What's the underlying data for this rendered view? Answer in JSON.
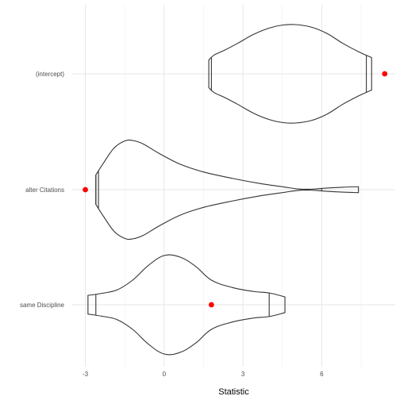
{
  "chart_data": {
    "type": "violin",
    "xlabel": "Statistic",
    "ylabel": "",
    "xlim": [
      -3.5,
      8.8
    ],
    "x_ticks": [
      -3,
      0,
      3,
      6
    ],
    "x_tick_labels": [
      "-3",
      "0",
      "3",
      "6"
    ],
    "categories": [
      "(intercept)",
      "alter Citations",
      "same Discipline"
    ],
    "grid": true,
    "outline_color": "#333333",
    "point_color": "#ff0000",
    "series": [
      {
        "category": "(intercept)",
        "observed": 8.4,
        "quantiles": [
          1.8,
          7.7
        ],
        "density": [
          [
            1.7,
            0.0
          ],
          [
            1.7,
            0.28
          ],
          [
            1.9,
            0.38
          ],
          [
            2.3,
            0.48
          ],
          [
            2.8,
            0.62
          ],
          [
            3.4,
            0.8
          ],
          [
            4.0,
            0.93
          ],
          [
            4.5,
            0.99
          ],
          [
            5.0,
            1.0
          ],
          [
            5.6,
            0.95
          ],
          [
            6.2,
            0.82
          ],
          [
            6.8,
            0.62
          ],
          [
            7.4,
            0.45
          ],
          [
            7.9,
            0.33
          ],
          [
            7.9,
            0.0
          ]
        ]
      },
      {
        "category": "alter Citations",
        "observed": -3.0,
        "quantiles": [
          -2.6,
          -2.5,
          6.0
        ],
        "density": [
          [
            -2.6,
            0.0
          ],
          [
            -2.6,
            0.3
          ],
          [
            -2.3,
            0.55
          ],
          [
            -1.9,
            0.85
          ],
          [
            -1.5,
            0.99
          ],
          [
            -1.2,
            1.0
          ],
          [
            -0.8,
            0.93
          ],
          [
            -0.2,
            0.74
          ],
          [
            0.6,
            0.52
          ],
          [
            1.5,
            0.36
          ],
          [
            2.6,
            0.23
          ],
          [
            3.6,
            0.13
          ],
          [
            4.5,
            0.06
          ],
          [
            5.1,
            0.015
          ],
          [
            5.6,
            0.01
          ],
          [
            6.1,
            0.03
          ],
          [
            6.8,
            0.05
          ],
          [
            7.4,
            0.06
          ],
          [
            7.4,
            0.0
          ]
        ]
      },
      {
        "category": "same Discipline",
        "observed": 1.8,
        "quantiles": [
          -2.6,
          4.0
        ],
        "density": [
          [
            -2.9,
            0.0
          ],
          [
            -2.9,
            0.19
          ],
          [
            -2.4,
            0.23
          ],
          [
            -1.8,
            0.3
          ],
          [
            -1.2,
            0.5
          ],
          [
            -0.6,
            0.8
          ],
          [
            0.0,
            1.0
          ],
          [
            0.6,
            0.97
          ],
          [
            1.2,
            0.78
          ],
          [
            1.8,
            0.5
          ],
          [
            2.6,
            0.35
          ],
          [
            3.4,
            0.27
          ],
          [
            4.0,
            0.24
          ],
          [
            4.6,
            0.16
          ],
          [
            4.6,
            0.0
          ]
        ]
      }
    ]
  }
}
